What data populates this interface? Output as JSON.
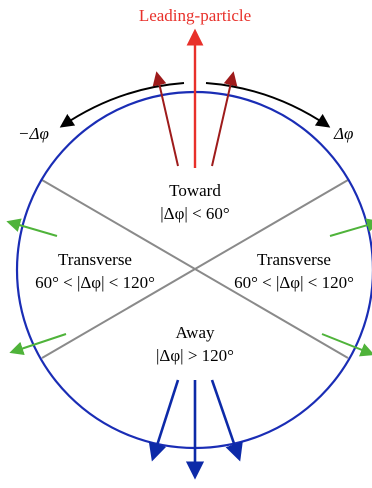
{
  "colors": {
    "circle": "#1a2db5",
    "leading": "#e8302a",
    "dark_red": "#9e1b1b",
    "gray": "#8a8a8a",
    "green": "#4fb33a",
    "blue_arrow": "#0d2aa8",
    "black": "#000000"
  },
  "labels": {
    "leading_particle": "Leading-particle",
    "neg_delta_phi": "−Δφ",
    "pos_delta_phi": "Δφ",
    "toward": {
      "title": "Toward",
      "condition": "|Δφ| < 60°"
    },
    "transverse_left": {
      "title": "Transverse",
      "condition": "60° < |Δφ| < 120°"
    },
    "transverse_right": {
      "title": "Transverse",
      "condition": "60° < |Δφ| < 120°"
    },
    "away": {
      "title": "Away",
      "condition": "|Δφ| > 120°"
    }
  }
}
